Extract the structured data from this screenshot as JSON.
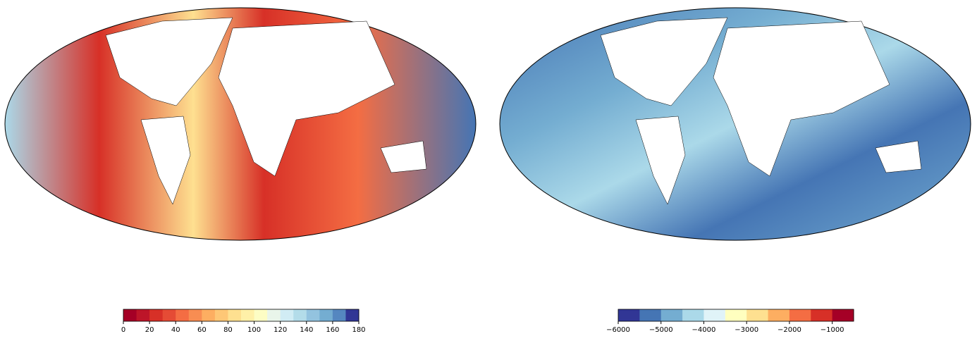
{
  "maps": [
    {
      "colorbar": {
        "lim": [
          0,
          180
        ],
        "ticks": [
          0,
          20,
          40,
          60,
          80,
          100,
          120,
          140,
          160,
          180
        ],
        "colors": [
          "#a50026",
          "#bd1529",
          "#d73027",
          "#e54b35",
          "#f46d43",
          "#f88d52",
          "#fdae61",
          "#fec776",
          "#fee090",
          "#fff0a8",
          "#fdfdc4",
          "#e9f5ea",
          "#d1ecf4",
          "#b3dce9",
          "#93c3df",
          "#74add1",
          "#5587c0",
          "#313695"
        ]
      }
    },
    {
      "colorbar": {
        "lim": [
          -6000,
          -500
        ],
        "ticks": [
          {
            "value": -6000,
            "label": "−6000"
          },
          {
            "value": -5000,
            "label": "−5000"
          },
          {
            "value": -4000,
            "label": "−4000"
          },
          {
            "value": -3000,
            "label": "−3000"
          },
          {
            "value": -2000,
            "label": "−2000"
          },
          {
            "value": -1000,
            "label": "−1000"
          }
        ],
        "colors": [
          "#313695",
          "#4575b4",
          "#74add1",
          "#abd9e9",
          "#e0f3f8",
          "#ffffbf",
          "#fee090",
          "#fdae61",
          "#f46d43",
          "#d73027",
          "#a50026"
        ]
      }
    }
  ]
}
